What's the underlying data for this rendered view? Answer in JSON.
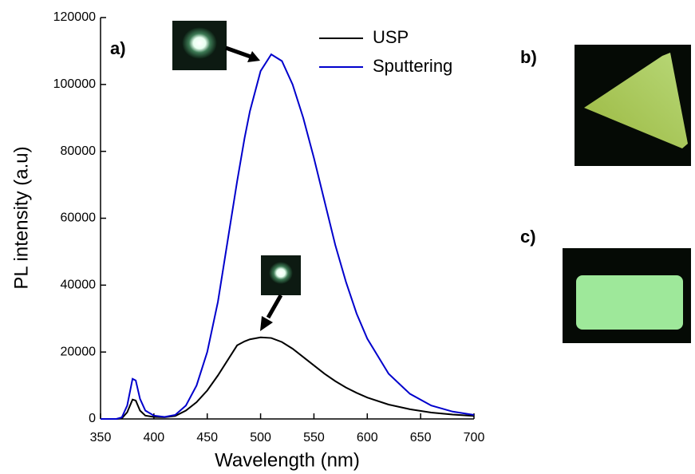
{
  "chart_data": {
    "type": "line",
    "xlabel": "Wavelength (nm)",
    "ylabel": "PL intensity (a.u)",
    "annotations": [
      "a)",
      "b)",
      "c)"
    ],
    "x": [
      350,
      365,
      370,
      375,
      380,
      383,
      387,
      392,
      400,
      410,
      420,
      430,
      440,
      450,
      460,
      470,
      478,
      485,
      490,
      500,
      510,
      520,
      530,
      540,
      550,
      560,
      570,
      580,
      590,
      600,
      620,
      640,
      660,
      680,
      700
    ],
    "series": [
      {
        "name": "USP",
        "color": "#000000",
        "values": [
          0,
          0,
          200,
          2000,
          5800,
          5500,
          2500,
          1000,
          600,
          500,
          900,
          2500,
          5000,
          8500,
          13000,
          18000,
          22000,
          23200,
          23800,
          24400,
          24200,
          23000,
          21000,
          18500,
          16000,
          13500,
          11300,
          9400,
          7800,
          6400,
          4300,
          2900,
          1900,
          1300,
          900
        ]
      },
      {
        "name": "Sputtering",
        "color": "#0000cc",
        "values": [
          0,
          0,
          500,
          4000,
          12000,
          11500,
          6000,
          2500,
          1000,
          600,
          1200,
          4000,
          10000,
          20000,
          35000,
          55000,
          71000,
          84000,
          92000,
          104000,
          109000,
          107000,
          100000,
          90000,
          78000,
          65000,
          52000,
          41000,
          31500,
          24000,
          13500,
          7500,
          4000,
          2200,
          1200
        ]
      }
    ],
    "xlim": [
      350,
      700
    ],
    "ylim": [
      0,
      120000
    ],
    "xticks": [
      350,
      400,
      450,
      500,
      550,
      600,
      650,
      700
    ],
    "yticks": [
      0,
      20000,
      40000,
      60000,
      80000,
      100000,
      120000
    ],
    "legend": "upper right"
  }
}
